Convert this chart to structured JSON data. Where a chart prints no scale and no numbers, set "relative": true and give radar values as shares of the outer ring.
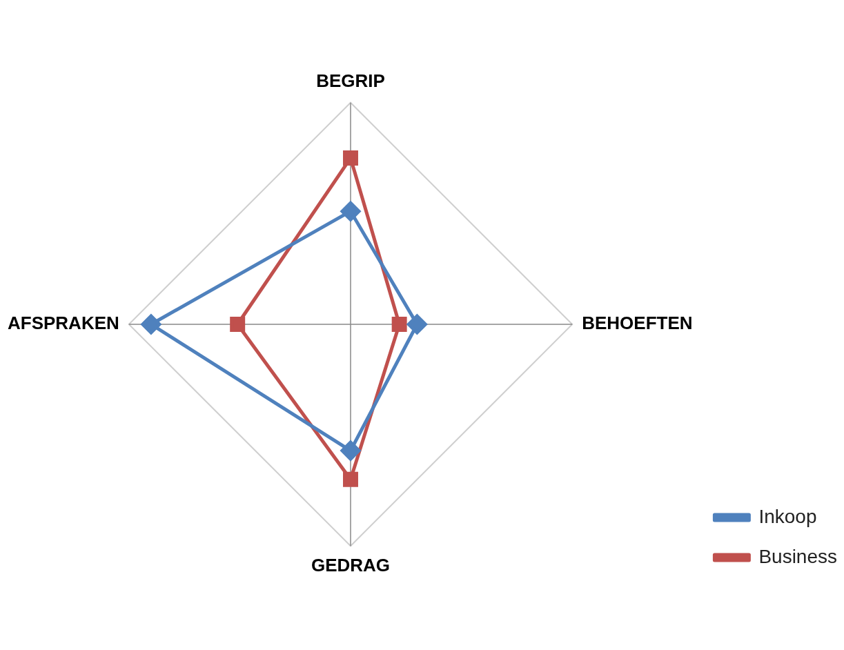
{
  "chart_data": {
    "type": "radar",
    "relative": true,
    "categories": [
      "BEGRIP",
      "BEHOEFTEN",
      "GEDRAG",
      "AFSPRAKEN"
    ],
    "series": [
      {
        "name": "Inkoop",
        "color": "#4f81bd",
        "marker": "diamond",
        "values": [
          0.51,
          0.3,
          0.57,
          0.9
        ]
      },
      {
        "name": "Business",
        "color": "#c0504d",
        "marker": "square",
        "values": [
          0.75,
          0.22,
          0.7,
          0.51
        ]
      }
    ],
    "grid": true,
    "legend": "bottom right"
  }
}
